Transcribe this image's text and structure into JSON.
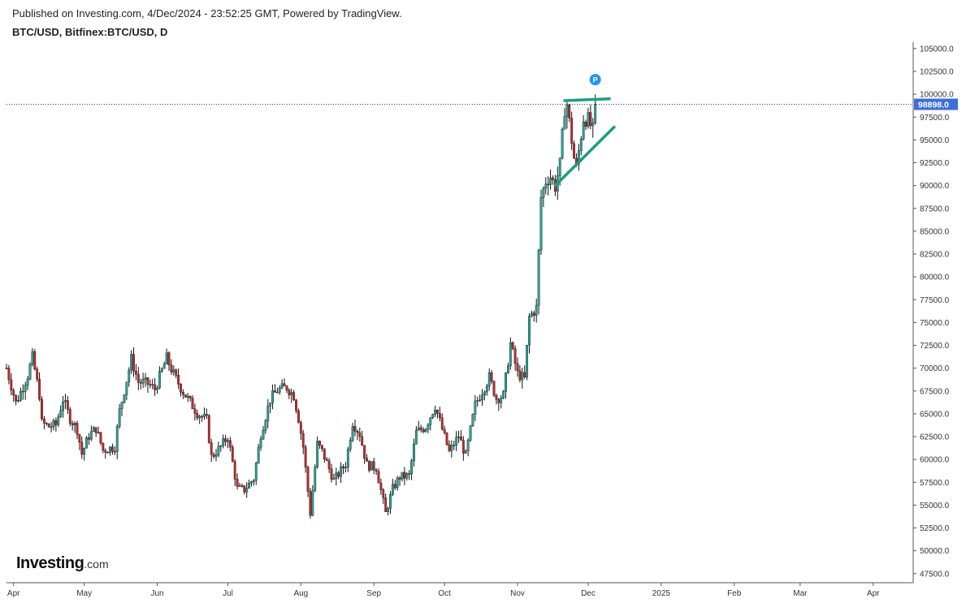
{
  "header": {
    "published": "Published on Investing.com, 4/Dec/2024 - 23:52:25 GMT, Powered by TradingView.",
    "symbol": "BTC/USD, Bitfinex:BTC/USD, D"
  },
  "logo": {
    "brand": "Investing",
    "suffix": ".com"
  },
  "colors": {
    "up": "#26a69a",
    "down": "#c62828",
    "trend": "#1a9e80",
    "price_line": "#1f3f8f",
    "price_label_bg": "#3d6ed9",
    "marker": "#2196f3"
  },
  "chart_data": {
    "type": "candlestick",
    "title": "BTC/USD, Bitfinex:BTC/USD, D",
    "xlabel": "",
    "ylabel": "",
    "ylim": [
      46500,
      105700
    ],
    "y_ticks": [
      47500,
      50000,
      52500,
      55000,
      57500,
      60000,
      62500,
      65000,
      67500,
      70000,
      72500,
      75000,
      77500,
      80000,
      82500,
      85000,
      87500,
      90000,
      92500,
      95000,
      97500,
      100000,
      102500,
      105000
    ],
    "x_ticks": [
      {
        "label": "Apr",
        "date": "2024-04-01"
      },
      {
        "label": "May",
        "date": "2024-05-01"
      },
      {
        "label": "Jun",
        "date": "2024-06-01"
      },
      {
        "label": "Jul",
        "date": "2024-07-01"
      },
      {
        "label": "Aug",
        "date": "2024-08-01"
      },
      {
        "label": "Sep",
        "date": "2024-09-01"
      },
      {
        "label": "Oct",
        "date": "2024-10-01"
      },
      {
        "label": "Nov",
        "date": "2024-11-01"
      },
      {
        "label": "Dec",
        "date": "2024-12-01"
      },
      {
        "label": "2025",
        "date": "2025-01-01"
      },
      {
        "label": "Feb",
        "date": "2025-02-01"
      },
      {
        "label": "Mar",
        "date": "2025-03-01"
      },
      {
        "label": "Apr",
        "date": "2025-04-01"
      }
    ],
    "x_range": [
      "2024-03-29",
      "2025-04-18"
    ],
    "close_path": [
      [
        "2024-03-29",
        70000
      ],
      [
        "2024-04-02",
        66200
      ],
      [
        "2024-04-07",
        69200
      ],
      [
        "2024-04-09",
        71200
      ],
      [
        "2024-04-12",
        67100
      ],
      [
        "2024-04-13",
        64000
      ],
      [
        "2024-04-16",
        63600
      ],
      [
        "2024-04-19",
        63800
      ],
      [
        "2024-04-22",
        66600
      ],
      [
        "2024-04-25",
        64500
      ],
      [
        "2024-04-28",
        63300
      ],
      [
        "2024-04-30",
        60600
      ],
      [
        "2024-05-03",
        62600
      ],
      [
        "2024-05-06",
        63400
      ],
      [
        "2024-05-09",
        61000
      ],
      [
        "2024-05-14",
        61400
      ],
      [
        "2024-05-16",
        65300
      ],
      [
        "2024-05-21",
        71000
      ],
      [
        "2024-05-24",
        68500
      ],
      [
        "2024-05-28",
        68300
      ],
      [
        "2024-05-31",
        67700
      ],
      [
        "2024-06-05",
        71100
      ],
      [
        "2024-06-08",
        69300
      ],
      [
        "2024-06-12",
        67400
      ],
      [
        "2024-06-18",
        65100
      ],
      [
        "2024-06-22",
        64300
      ],
      [
        "2024-06-24",
        60300
      ],
      [
        "2024-06-28",
        61400
      ],
      [
        "2024-07-01",
        62500
      ],
      [
        "2024-07-05",
        56800
      ],
      [
        "2024-07-08",
        56700
      ],
      [
        "2024-07-12",
        57900
      ],
      [
        "2024-07-15",
        62800
      ],
      [
        "2024-07-19",
        66600
      ],
      [
        "2024-07-22",
        67600
      ],
      [
        "2024-07-26",
        67900
      ],
      [
        "2024-07-29",
        67000
      ],
      [
        "2024-07-31",
        64500
      ],
      [
        "2024-08-02",
        61400
      ],
      [
        "2024-08-05",
        54100
      ],
      [
        "2024-08-08",
        61700
      ],
      [
        "2024-08-10",
        60900
      ],
      [
        "2024-08-15",
        57700
      ],
      [
        "2024-08-20",
        59500
      ],
      [
        "2024-08-23",
        64100
      ],
      [
        "2024-08-26",
        62800
      ],
      [
        "2024-08-29",
        59400
      ],
      [
        "2024-09-02",
        59100
      ],
      [
        "2024-09-06",
        54100
      ],
      [
        "2024-09-09",
        56800
      ],
      [
        "2024-09-12",
        58100
      ],
      [
        "2024-09-16",
        58200
      ],
      [
        "2024-09-19",
        63000
      ],
      [
        "2024-09-23",
        63600
      ],
      [
        "2024-09-27",
        65900
      ],
      [
        "2024-09-30",
        63300
      ],
      [
        "2024-10-03",
        60800
      ],
      [
        "2024-10-07",
        62600
      ],
      [
        "2024-10-10",
        60400
      ],
      [
        "2024-10-14",
        66000
      ],
      [
        "2024-10-17",
        67500
      ],
      [
        "2024-10-20",
        69000
      ],
      [
        "2024-10-23",
        66700
      ],
      [
        "2024-10-26",
        67000
      ],
      [
        "2024-10-29",
        72700
      ],
      [
        "2024-11-01",
        69400
      ],
      [
        "2024-11-04",
        68800
      ],
      [
        "2024-11-06",
        75600
      ],
      [
        "2024-11-09",
        76600
      ],
      [
        "2024-11-11",
        88700
      ],
      [
        "2024-11-13",
        90500
      ],
      [
        "2024-11-15",
        91000
      ],
      [
        "2024-11-17",
        89900
      ],
      [
        "2024-11-19",
        92300
      ],
      [
        "2024-11-21",
        98400
      ],
      [
        "2024-11-22",
        98900
      ],
      [
        "2024-11-25",
        93000
      ],
      [
        "2024-11-26",
        91900
      ],
      [
        "2024-11-29",
        97400
      ],
      [
        "2024-12-01",
        97200
      ],
      [
        "2024-12-03",
        96000
      ],
      [
        "2024-12-04",
        98898
      ]
    ],
    "last_price": {
      "label": "98898.0",
      "value": 98898
    },
    "annotations": {
      "trendlines": [
        {
          "from": [
            "2024-11-21",
            99300
          ],
          "to": [
            "2024-12-10",
            99500
          ]
        },
        {
          "from": [
            "2024-11-17",
            90000
          ],
          "to": [
            "2024-12-12",
            96400
          ]
        }
      ],
      "marker": {
        "label": "P",
        "date": "2024-12-04",
        "value": 101600
      }
    }
  }
}
